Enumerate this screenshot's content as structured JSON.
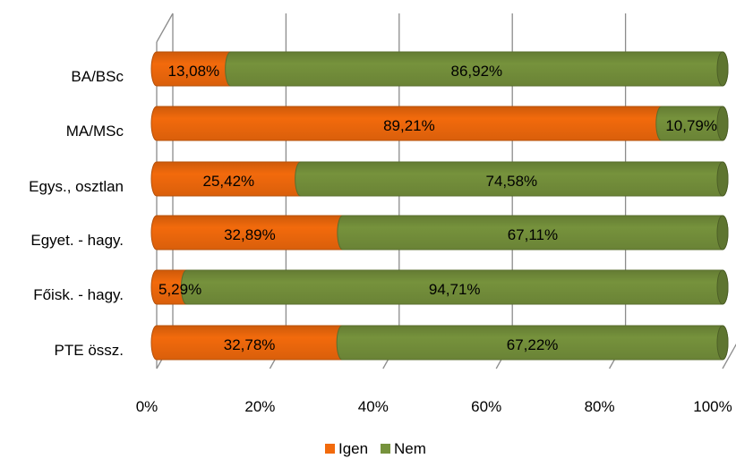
{
  "chart_data": {
    "type": "bar",
    "orientation": "horizontal",
    "stacked": "percent",
    "categories": [
      "BA/BSc",
      "MA/MSc",
      "Egys., osztlan",
      "Egyet. - hagy.",
      "Főisk. - hagy.",
      "PTE össz."
    ],
    "series": [
      {
        "name": "Igen",
        "color": "#f26a0c",
        "values": [
          13.08,
          89.21,
          25.42,
          32.89,
          5.29,
          32.78
        ],
        "labels": [
          "13,08%",
          "89,21%",
          "25,42%",
          "32,89%",
          "5,29%",
          "32,78%"
        ]
      },
      {
        "name": "Nem",
        "color": "#76923c",
        "values": [
          86.92,
          10.79,
          74.58,
          67.11,
          94.71,
          67.22
        ],
        "labels": [
          "86,92%",
          "10,79%",
          "74,58%",
          "67,11%",
          "94,71%",
          "67,22%"
        ]
      }
    ],
    "xlim": [
      0,
      100
    ],
    "x_ticks": [
      "0%",
      "20%",
      "40%",
      "60%",
      "80%",
      "100%"
    ],
    "grid": true,
    "legend": "bottom"
  }
}
